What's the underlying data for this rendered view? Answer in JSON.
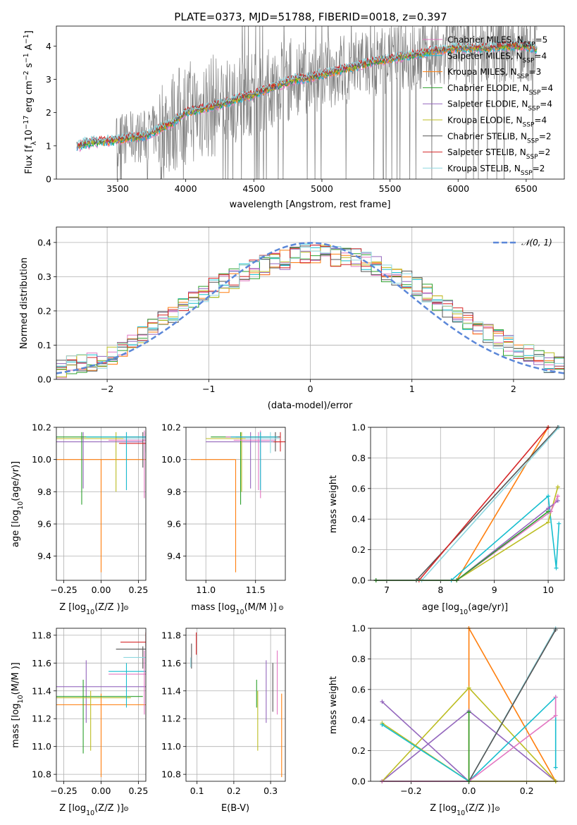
{
  "figure": {
    "title": "PLATE=0373, MJD=51788, FIBERID=0018, z=0.397",
    "models": [
      {
        "name": "Chabrier MILES, N",
        "nssp": "5",
        "color": "#e377c2"
      },
      {
        "name": "Salpeter MILES, N",
        "nssp": "4",
        "color": "#17becf"
      },
      {
        "name": "Kroupa MILES, N",
        "nssp": "3",
        "color": "#ff7f0e"
      },
      {
        "name": "Chabrier ELODIE, N",
        "nssp": "4",
        "color": "#2ca02c"
      },
      {
        "name": "Salpeter ELODIE, N",
        "nssp": "4",
        "color": "#9467bd"
      },
      {
        "name": "Kroupa ELODIE, N",
        "nssp": "4",
        "color": "#bcbd22"
      },
      {
        "name": "Chabrier STELIB, N",
        "nssp": "2",
        "color": "#555555"
      },
      {
        "name": "Salpeter STELIB, N",
        "nssp": "2",
        "color": "#d62728"
      },
      {
        "name": "Kroupa STELIB, N",
        "nssp": "2",
        "color": "#8fd7e0"
      }
    ]
  },
  "chart_data": [
    {
      "id": "spectrum",
      "type": "line",
      "xlabel": "wavelength [Angstrom, rest frame]",
      "ylabel_parts": [
        "Flux [f",
        "λ",
        "10",
        "−17",
        " erg cm",
        "−2",
        " s",
        "−1",
        " A",
        "−1",
        "]"
      ],
      "xlim": [
        3050,
        6780
      ],
      "ylim": [
        0,
        4.6
      ],
      "xticks": [
        3500,
        4000,
        4500,
        5000,
        5500,
        6000,
        6500
      ],
      "yticks": [
        0,
        1,
        2,
        3,
        4
      ],
      "ssp_label": "SSP",
      "data_color": "#808080",
      "model_continuum": {
        "x": [
          3200,
          3300,
          3400,
          3500,
          3600,
          3700,
          3800,
          3900,
          4000,
          4100,
          4200,
          4300,
          4400,
          4500,
          4600,
          4700,
          4800,
          4900,
          5000,
          5100,
          5200,
          5300,
          5400,
          5500,
          5600,
          5700,
          5800,
          5900,
          6000,
          6100,
          6200,
          6300,
          6400,
          6500,
          6580
        ],
        "y": [
          1.0,
          1.12,
          1.15,
          1.18,
          1.25,
          1.3,
          1.5,
          1.7,
          2.0,
          2.1,
          2.2,
          2.3,
          2.45,
          2.55,
          2.7,
          2.85,
          3.0,
          3.05,
          3.15,
          3.25,
          3.35,
          3.45,
          3.55,
          3.6,
          3.7,
          3.75,
          3.85,
          3.9,
          3.95,
          3.95,
          3.95,
          4.0,
          4.0,
          4.0,
          3.9
        ]
      }
    },
    {
      "id": "residuals",
      "type": "histogram",
      "xlabel": "(data-model)/error",
      "ylabel": "Normed distribution",
      "xlim": [
        -2.5,
        2.5
      ],
      "ylim": [
        0,
        0.445
      ],
      "xticks": [
        -2,
        -1,
        0,
        1,
        2
      ],
      "yticks": [
        0.0,
        0.1,
        0.2,
        0.3,
        0.4
      ],
      "bin_width": 0.1,
      "legend_label": "𝒩(0, 1)",
      "gaussian_color": "#5b87d8",
      "histogram_envelope_x": [
        -2.5,
        -2.0,
        -1.5,
        -1.0,
        -0.5,
        0.0,
        0.5,
        1.0,
        1.5,
        2.0,
        2.5
      ],
      "histogram_envelope_y": [
        0.03,
        0.06,
        0.16,
        0.26,
        0.33,
        0.37,
        0.35,
        0.28,
        0.18,
        0.09,
        0.03
      ]
    },
    {
      "id": "age-vs-z",
      "type": "errorbar",
      "xlabel": "Z [log",
      "xlabel_sub": "10",
      "xlabel_tail": "(Z/Z",
      "ylabel": "age  [log",
      "ylabel_sub": "10",
      "ylabel_tail": "(age/yr)]",
      "xlim": [
        -0.3,
        0.3
      ],
      "ylim": [
        9.25,
        10.2
      ],
      "xticks": [
        -0.25,
        0.0,
        0.25
      ],
      "yticks": [
        9.4,
        9.6,
        9.8,
        10.0,
        10.2
      ]
    },
    {
      "id": "age-vs-mass",
      "type": "errorbar",
      "xlabel": "mass [log",
      "xlabel_sub": "10",
      "xlabel_tail": "(M/M",
      "xlim": [
        10.8,
        11.8
      ],
      "ylim": [
        9.25,
        10.2
      ],
      "xticks": [
        11.0,
        11.5
      ],
      "yticks": [
        9.4,
        9.6,
        9.8,
        10.0,
        10.2
      ]
    },
    {
      "id": "weight-vs-age",
      "type": "line",
      "xlabel": "age  [log",
      "xlabel_sub": "10",
      "xlabel_tail": "(age/yr)]",
      "ylabel": "mass weight",
      "xlim": [
        6.7,
        10.3
      ],
      "ylim": [
        0,
        1.0
      ],
      "xticks": [
        7,
        8,
        9,
        10
      ],
      "yticks": [
        0.0,
        0.2,
        0.4,
        0.6,
        0.8,
        1.0
      ]
    },
    {
      "id": "mass-vs-z",
      "type": "errorbar",
      "xlabel": "Z [log",
      "xlabel_sub": "10",
      "xlabel_tail": "(Z/Z",
      "ylabel": "mass [log",
      "ylabel_sub": "10",
      "ylabel_tail": "(M/M",
      "xlim": [
        -0.3,
        0.3
      ],
      "ylim": [
        10.75,
        11.85
      ],
      "xticks": [
        -0.25,
        0.0,
        0.25
      ],
      "yticks": [
        10.8,
        11.0,
        11.2,
        11.4,
        11.6,
        11.8
      ]
    },
    {
      "id": "mass-vs-ebv",
      "type": "errorbar",
      "xlabel": "E(B-V)",
      "xlim": [
        0.07,
        0.34
      ],
      "ylim": [
        10.75,
        11.85
      ],
      "xticks": [
        0.1,
        0.2,
        0.3
      ],
      "yticks": [
        10.8,
        11.0,
        11.2,
        11.4,
        11.6,
        11.8
      ]
    },
    {
      "id": "weight-vs-z",
      "type": "line",
      "xlabel": "Z [log",
      "xlabel_sub": "10",
      "xlabel_tail": "(Z/Z",
      "ylabel": "mass weight",
      "xlim": [
        -0.34,
        0.33
      ],
      "ylim": [
        0,
        1.0
      ],
      "xticks": [
        -0.2,
        0.0,
        0.2
      ],
      "yticks": [
        0.0,
        0.2,
        0.4,
        0.6,
        0.8,
        1.0
      ]
    }
  ]
}
